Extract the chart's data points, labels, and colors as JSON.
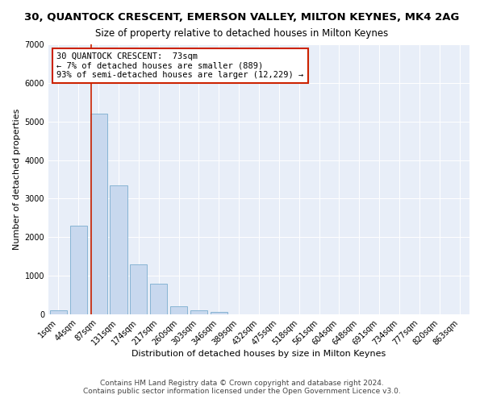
{
  "title1": "30, QUANTOCK CRESCENT, EMERSON VALLEY, MILTON KEYNES, MK4 2AG",
  "title2": "Size of property relative to detached houses in Milton Keynes",
  "xlabel": "Distribution of detached houses by size in Milton Keynes",
  "ylabel": "Number of detached properties",
  "bar_labels": [
    "1sqm",
    "44sqm",
    "87sqm",
    "131sqm",
    "174sqm",
    "217sqm",
    "260sqm",
    "303sqm",
    "346sqm",
    "389sqm",
    "432sqm",
    "475sqm",
    "518sqm",
    "561sqm",
    "604sqm",
    "648sqm",
    "691sqm",
    "734sqm",
    "777sqm",
    "820sqm",
    "863sqm"
  ],
  "bar_values": [
    100,
    2300,
    5200,
    3350,
    1300,
    800,
    200,
    100,
    55,
    10,
    5,
    2,
    1,
    0,
    0,
    0,
    0,
    0,
    0,
    0,
    0
  ],
  "bar_color": "#c8d8ee",
  "bar_edge_color": "#7aadcf",
  "vline_x": 1.65,
  "vline_color": "#cc2200",
  "annotation_line1": "30 QUANTOCK CRESCENT:  73sqm",
  "annotation_line2": "← 7% of detached houses are smaller (889)",
  "annotation_line3": "93% of semi-detached houses are larger (12,229) →",
  "annotation_box_color": "#ffffff",
  "annotation_box_edge": "#cc2200",
  "ylim": [
    0,
    7000
  ],
  "yticks": [
    0,
    1000,
    2000,
    3000,
    4000,
    5000,
    6000,
    7000
  ],
  "bg_color": "#e8eef8",
  "footer1": "Contains HM Land Registry data © Crown copyright and database right 2024.",
  "footer2": "Contains public sector information licensed under the Open Government Licence v3.0.",
  "title1_fontsize": 9.5,
  "title2_fontsize": 8.5,
  "xlabel_fontsize": 8,
  "ylabel_fontsize": 8,
  "tick_fontsize": 7,
  "annotation_fontsize": 7.5,
  "footer_fontsize": 6.5
}
